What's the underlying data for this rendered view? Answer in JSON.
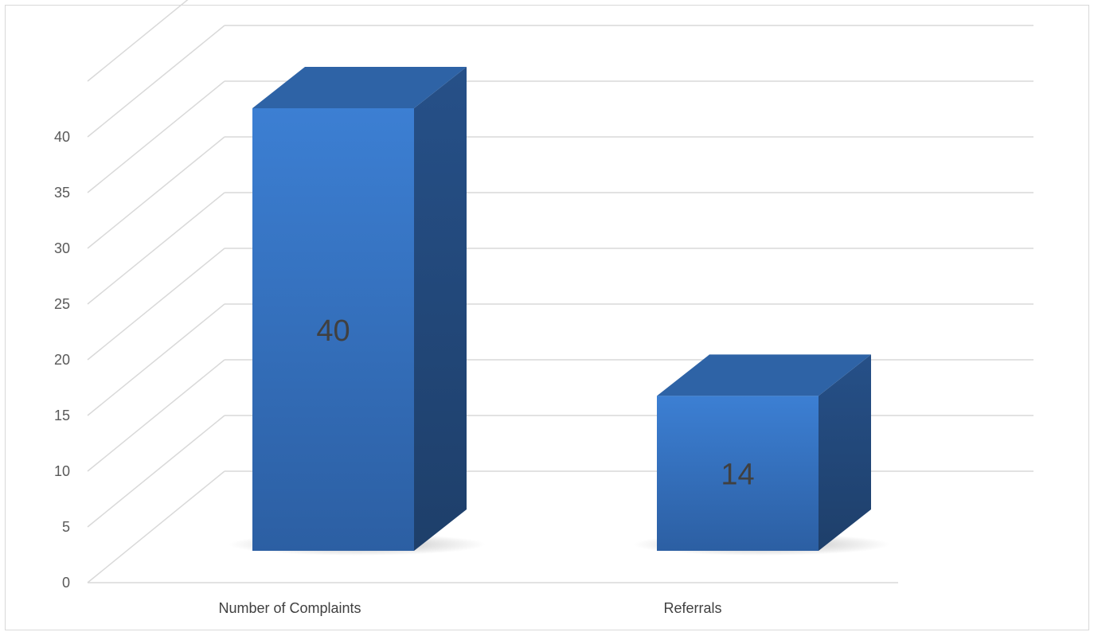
{
  "chart_data": {
    "type": "bar",
    "style": "3d-column",
    "categories": [
      "Number of Complaints",
      "Referrals"
    ],
    "values": [
      40,
      14
    ],
    "data_labels": [
      "40",
      "14"
    ],
    "ylim": [
      0,
      40
    ],
    "yticks": [
      0,
      5,
      10,
      15,
      20,
      25,
      30,
      35,
      40
    ],
    "ytick_labels": [
      "0",
      "5",
      "10",
      "15",
      "20",
      "25",
      "30",
      "35",
      "40"
    ],
    "title": "",
    "xlabel": "",
    "ylabel": "",
    "grid": true,
    "legend": "none",
    "colors": {
      "bar_front_light": "#3c7fd3",
      "bar_front_dark": "#2d62a8",
      "bar_top": "#2e63a6",
      "bar_side": "#234a7e",
      "gridline": "#d9d9d9",
      "label_text": "#404040"
    }
  }
}
